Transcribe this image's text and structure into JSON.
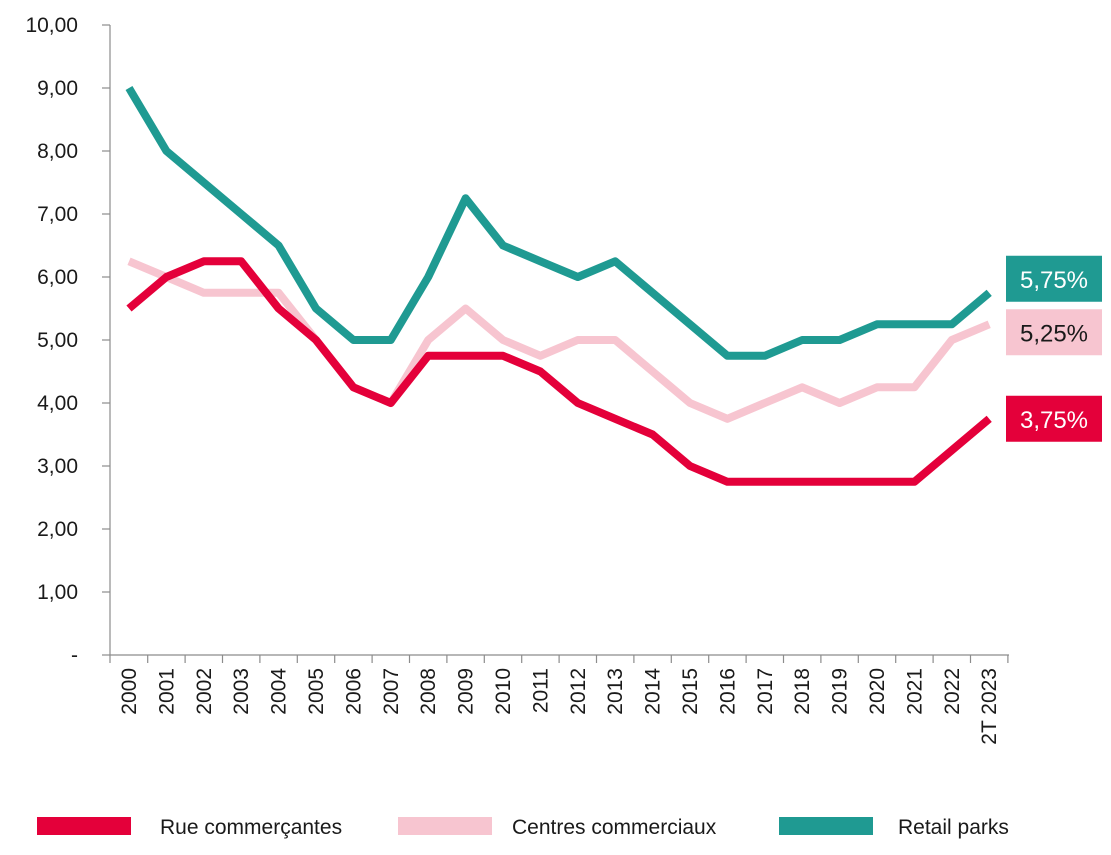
{
  "chart_data": {
    "type": "line",
    "categories": [
      "2000",
      "2001",
      "2002",
      "2003",
      "2004",
      "2005",
      "2006",
      "2007",
      "2008",
      "2009",
      "2010",
      "2011",
      "2012",
      "2013",
      "2014",
      "2015",
      "2016",
      "2017",
      "2018",
      "2019",
      "2020",
      "2021",
      "2022",
      "2T 2023"
    ],
    "y_ticks": [
      "-",
      "1,00",
      "2,00",
      "3,00",
      "4,00",
      "5,00",
      "6,00",
      "7,00",
      "8,00",
      "9,00",
      "10,00"
    ],
    "ylim": [
      0,
      10
    ],
    "grid": false,
    "legend_position": "bottom",
    "series": [
      {
        "name": "Rue commerçantes",
        "color": "#e4003a",
        "values": [
          5.5,
          6.0,
          6.25,
          6.25,
          5.5,
          5.0,
          4.25,
          4.0,
          4.75,
          4.75,
          4.75,
          4.5,
          4.0,
          3.75,
          3.5,
          3.0,
          2.75,
          2.75,
          2.75,
          2.75,
          2.75,
          2.75,
          3.25,
          3.75
        ],
        "end_label": "3,75%",
        "end_label_text_color": "#ffffff"
      },
      {
        "name": "Centres commerciaux",
        "color": "#f7c5d0",
        "values": [
          6.25,
          6.0,
          5.75,
          5.75,
          5.75,
          5.0,
          4.25,
          4.0,
          5.0,
          5.5,
          5.0,
          4.75,
          5.0,
          5.0,
          4.5,
          4.0,
          3.75,
          4.0,
          4.25,
          4.0,
          4.25,
          4.25,
          5.0,
          5.25
        ],
        "end_label": "5,25%",
        "end_label_text_color": "#1a1a1a"
      },
      {
        "name": "Retail parks",
        "color": "#1f9a92",
        "values": [
          9.0,
          8.0,
          7.5,
          7.0,
          6.5,
          5.5,
          5.0,
          5.0,
          6.0,
          7.25,
          6.5,
          6.25,
          6.0,
          6.25,
          5.75,
          5.25,
          4.75,
          4.75,
          5.0,
          5.0,
          5.25,
          5.25,
          5.25,
          5.75
        ],
        "end_label": "5,75%",
        "end_label_text_color": "#ffffff"
      }
    ]
  }
}
